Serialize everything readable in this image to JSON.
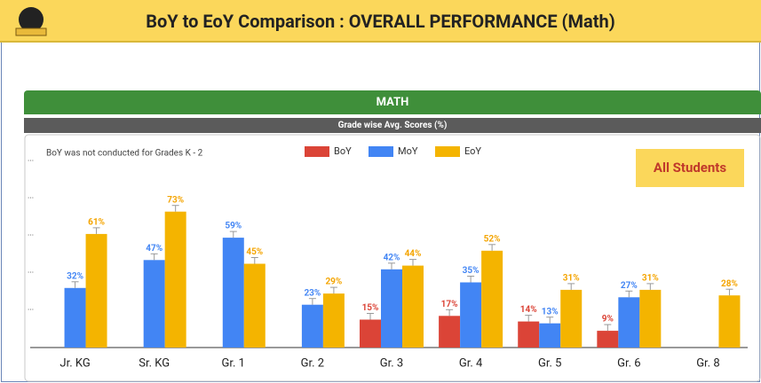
{
  "header": {
    "title": "BoY to EoY Comparison : OVERALL PERFORMANCE (Math)"
  },
  "section": "MATH",
  "subtitle": "Grade wise Avg. Scores (%)",
  "chart_data": {
    "type": "bar",
    "note": "BoY was not conducted for Grades K - 2",
    "badge": "All Students",
    "categories": [
      "Jr. KG",
      "Sr. KG",
      "Gr. 1",
      "Gr. 2",
      "Gr. 3",
      "Gr. 4",
      "Gr. 5",
      "Gr. 6",
      "Gr. 8"
    ],
    "series": [
      {
        "name": "BoY",
        "color": "#db4437",
        "values": [
          null,
          null,
          null,
          null,
          15,
          17,
          14,
          9,
          null
        ],
        "value_labels": [
          null,
          null,
          null,
          null,
          "15%",
          "17%",
          "14%",
          "9%",
          null
        ]
      },
      {
        "name": "MoY",
        "color": "#4285f4",
        "values": [
          32,
          47,
          59,
          23,
          42,
          35,
          13,
          27,
          null
        ],
        "value_labels": [
          "32%",
          "47%",
          "59%",
          "23%",
          "42%",
          "35%",
          "13%",
          "27%",
          null
        ]
      },
      {
        "name": "EoY",
        "color": "#f4b400",
        "values": [
          61,
          73,
          45,
          29,
          44,
          52,
          31,
          31,
          28
        ],
        "value_labels": [
          "61%",
          "73%",
          "45%",
          "29%",
          "44%",
          "52%",
          "31%",
          "31%",
          "28%"
        ]
      }
    ],
    "ylim": [
      0,
      100
    ],
    "yticks": [
      {
        "value": 20,
        "label": "..."
      },
      {
        "value": 40,
        "label": "..."
      },
      {
        "value": 60,
        "label": "..."
      },
      {
        "value": 80,
        "label": "..."
      },
      {
        "value": 100,
        "label": "..."
      }
    ]
  }
}
